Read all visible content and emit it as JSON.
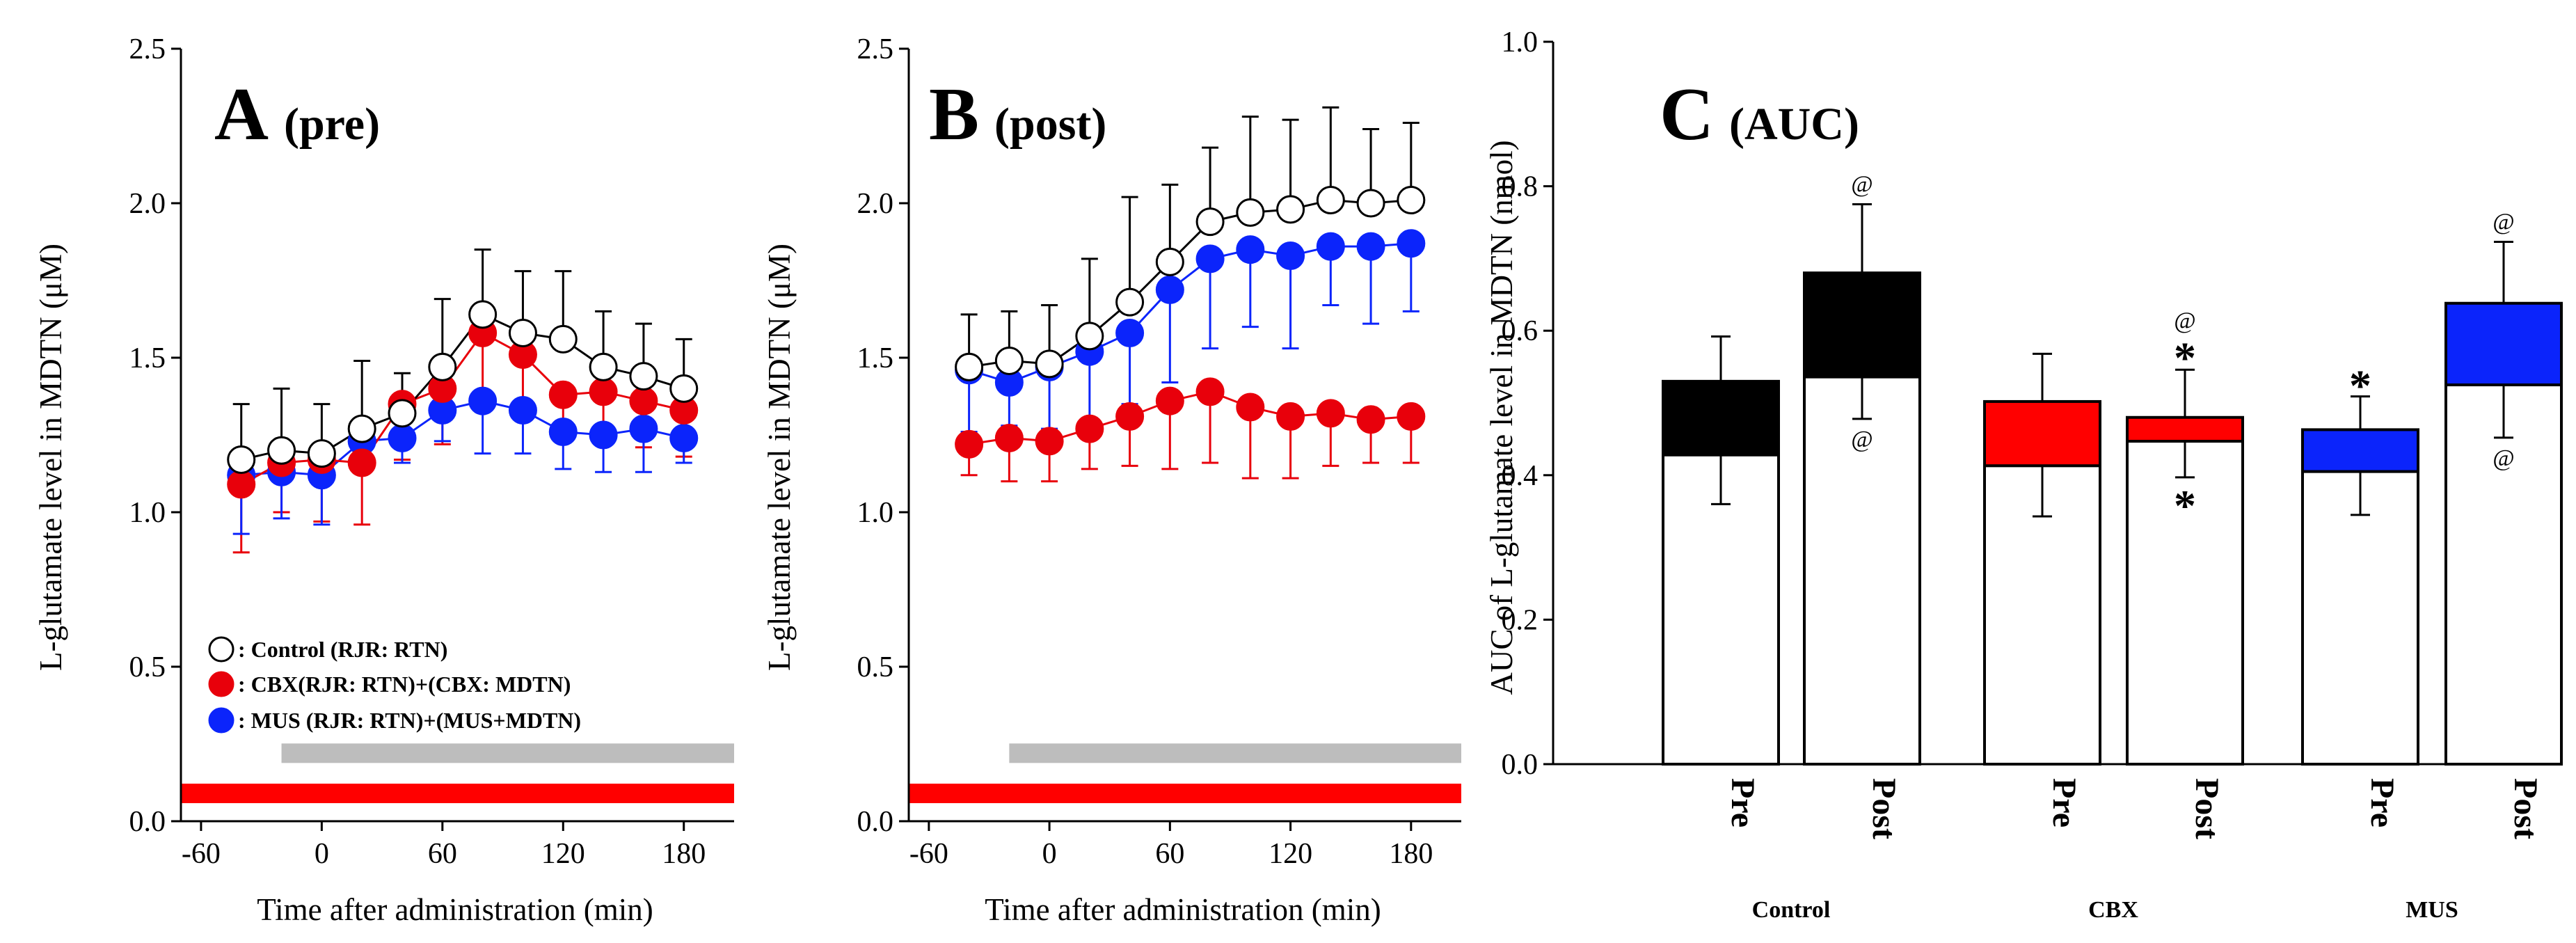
{
  "chart_data": [
    {
      "type": "line",
      "panel_letter": "A",
      "panel_subtitle": "(pre)",
      "xlabel": "Time after administration (min)",
      "ylabel": "L-glutamate level in MDTN (μM)",
      "xlim": [
        -70,
        205
      ],
      "ylim": [
        0,
        2.5
      ],
      "xticks": [
        -60,
        0,
        60,
        120,
        180
      ],
      "yticks": [
        0.0,
        0.5,
        1.0,
        1.5,
        2.0,
        2.5
      ],
      "ytick_labels": [
        "0.0",
        "0.5",
        "1.0",
        "1.5",
        "2.0",
        "2.5"
      ],
      "x": [
        -40,
        -20,
        0,
        20,
        40,
        60,
        80,
        100,
        120,
        140,
        160,
        180
      ],
      "series": [
        {
          "name": "Control",
          "color": "#000000",
          "fill": "#ffffff",
          "values": [
            1.17,
            1.2,
            1.19,
            1.27,
            1.32,
            1.47,
            1.64,
            1.58,
            1.56,
            1.47,
            1.44,
            1.4
          ],
          "err_up": [
            0.18,
            0.2,
            0.16,
            0.22,
            0.13,
            0.22,
            0.21,
            0.2,
            0.22,
            0.18,
            0.17,
            0.16
          ],
          "err_down": [
            0,
            0,
            0,
            0,
            0,
            0,
            0,
            0,
            0,
            0,
            0,
            0
          ]
        },
        {
          "name": "CBX",
          "color": "#e8000b",
          "fill": "#e8000b",
          "values": [
            1.09,
            1.16,
            1.17,
            1.16,
            1.35,
            1.4,
            1.58,
            1.51,
            1.38,
            1.39,
            1.36,
            1.33
          ],
          "err_up": [
            0,
            0,
            0,
            0,
            0,
            0,
            0,
            0,
            0,
            0,
            0,
            0
          ],
          "err_down": [
            0.22,
            0.16,
            0.2,
            0.2,
            0.18,
            0.18,
            0.23,
            0.18,
            0.15,
            0.15,
            0.15,
            0.15
          ]
        },
        {
          "name": "MUS",
          "color": "#0b24fb",
          "fill": "#0b24fb",
          "values": [
            1.12,
            1.13,
            1.12,
            1.23,
            1.24,
            1.33,
            1.36,
            1.33,
            1.26,
            1.25,
            1.27,
            1.24
          ],
          "err_up": [
            0,
            0,
            0,
            0,
            0,
            0,
            0,
            0,
            0,
            0,
            0,
            0
          ],
          "err_down": [
            0.19,
            0.15,
            0.16,
            0.06,
            0.08,
            0.1,
            0.17,
            0.14,
            0.12,
            0.12,
            0.14,
            0.08
          ]
        }
      ],
      "legend": [
        {
          "marker": "open-circle",
          "label": ": Control (RJR: RTN)"
        },
        {
          "marker": "red-circle",
          "label": ": CBX(RJR: RTN)+(CBX: MDTN)"
        },
        {
          "marker": "blue-circle",
          "label": ": MUS (RJR: RTN)+(MUS+MDTN)"
        }
      ],
      "bars": [
        {
          "name": "gray-period",
          "color": "#bdbdbd",
          "start": -20,
          "end": 205,
          "level": 0.22
        },
        {
          "name": "red-period",
          "color": "#ff0000",
          "start": -70,
          "end": 205,
          "level": 0.09
        }
      ]
    },
    {
      "type": "line",
      "panel_letter": "B",
      "panel_subtitle": "(post)",
      "xlabel": "Time after administration (min)",
      "ylabel": "L-glutamate level in MDTN (μM)",
      "xlim": [
        -70,
        205
      ],
      "ylim": [
        0,
        2.5
      ],
      "xticks": [
        -60,
        0,
        60,
        120,
        180
      ],
      "yticks": [
        0.0,
        0.5,
        1.0,
        1.5,
        2.0,
        2.5
      ],
      "ytick_labels": [
        "0.0",
        "0.5",
        "1.0",
        "1.5",
        "2.0",
        "2.5"
      ],
      "x": [
        -40,
        -20,
        0,
        20,
        40,
        60,
        80,
        100,
        120,
        140,
        160,
        180
      ],
      "series": [
        {
          "name": "Control",
          "color": "#000000",
          "fill": "#ffffff",
          "values": [
            1.47,
            1.49,
            1.48,
            1.57,
            1.68,
            1.81,
            1.94,
            1.97,
            1.98,
            2.01,
            2.0,
            2.01
          ],
          "err_up": [
            0.17,
            0.16,
            0.19,
            0.25,
            0.34,
            0.25,
            0.24,
            0.31,
            0.29,
            0.3,
            0.24,
            0.25
          ],
          "err_down": [
            0,
            0,
            0,
            0,
            0,
            0,
            0,
            0,
            0,
            0,
            0,
            0
          ]
        },
        {
          "name": "CBX",
          "color": "#e8000b",
          "fill": "#e8000b",
          "values": [
            1.22,
            1.24,
            1.23,
            1.27,
            1.31,
            1.36,
            1.39,
            1.34,
            1.31,
            1.32,
            1.3,
            1.31
          ],
          "err_up": [
            0,
            0,
            0,
            0,
            0,
            0,
            0,
            0,
            0,
            0,
            0,
            0
          ],
          "err_down": [
            0.1,
            0.14,
            0.13,
            0.13,
            0.16,
            0.22,
            0.23,
            0.23,
            0.2,
            0.17,
            0.14,
            0.15
          ]
        },
        {
          "name": "MUS",
          "color": "#0b24fb",
          "fill": "#0b24fb",
          "values": [
            1.46,
            1.42,
            1.47,
            1.52,
            1.58,
            1.72,
            1.82,
            1.85,
            1.83,
            1.86,
            1.86,
            1.87
          ],
          "err_up": [
            0,
            0,
            0,
            0,
            0,
            0,
            0,
            0,
            0,
            0,
            0,
            0
          ],
          "err_down": [
            0.2,
            0.14,
            0.2,
            0.26,
            0.23,
            0.3,
            0.29,
            0.25,
            0.3,
            0.19,
            0.25,
            0.22
          ]
        }
      ],
      "bars": [
        {
          "name": "gray-period",
          "color": "#bdbdbd",
          "start": -20,
          "end": 205,
          "level": 0.22
        },
        {
          "name": "red-period",
          "color": "#ff0000",
          "start": -70,
          "end": 205,
          "level": 0.09
        }
      ]
    },
    {
      "type": "bar",
      "panel_letter": "C",
      "panel_subtitle": "(AUC)",
      "ylabel": "AUC of L-glutamate level in MDTN (nmol)",
      "ylim": [
        0,
        1.0
      ],
      "yticks": [
        0.0,
        0.2,
        0.4,
        0.6,
        0.8,
        1.0
      ],
      "ytick_labels": [
        "0.0",
        "0.2",
        "0.4",
        "0.6",
        "0.8",
        "1.0"
      ],
      "categories": [
        "Pre",
        "Post",
        "Pre",
        "Post",
        "Pre",
        "Post"
      ],
      "groups": [
        "Control",
        "CBX",
        "MUS"
      ],
      "series": [
        {
          "name": "white-portion",
          "color": "#ffffff",
          "values": [
            0.428,
            0.536,
            0.413,
            0.447,
            0.405,
            0.525
          ],
          "err_down": [
            0.068,
            0.058,
            0.07,
            0.05,
            0.06,
            0.073
          ]
        },
        {
          "name": "colored-total",
          "colors": [
            "#000000",
            "#000000",
            "#ff0000",
            "#ff0000",
            "#0b24fb",
            "#0b24fb"
          ],
          "values": [
            0.53,
            0.68,
            0.502,
            0.48,
            0.463,
            0.638
          ],
          "err_up": [
            0.062,
            0.095,
            0.066,
            0.066,
            0.046,
            0.085
          ]
        }
      ],
      "annotations": [
        {
          "bar": 1,
          "text": "@",
          "position": "above"
        },
        {
          "bar": 1,
          "text": "@",
          "position": "below"
        },
        {
          "bar": 3,
          "text": "@",
          "position": "above"
        },
        {
          "bar": 3,
          "text": "*",
          "position": "above"
        },
        {
          "bar": 3,
          "text": "*",
          "position": "below"
        },
        {
          "bar": 4,
          "text": "*",
          "position": "above"
        },
        {
          "bar": 5,
          "text": "@",
          "position": "above"
        },
        {
          "bar": 5,
          "text": "@",
          "position": "below"
        }
      ]
    }
  ]
}
